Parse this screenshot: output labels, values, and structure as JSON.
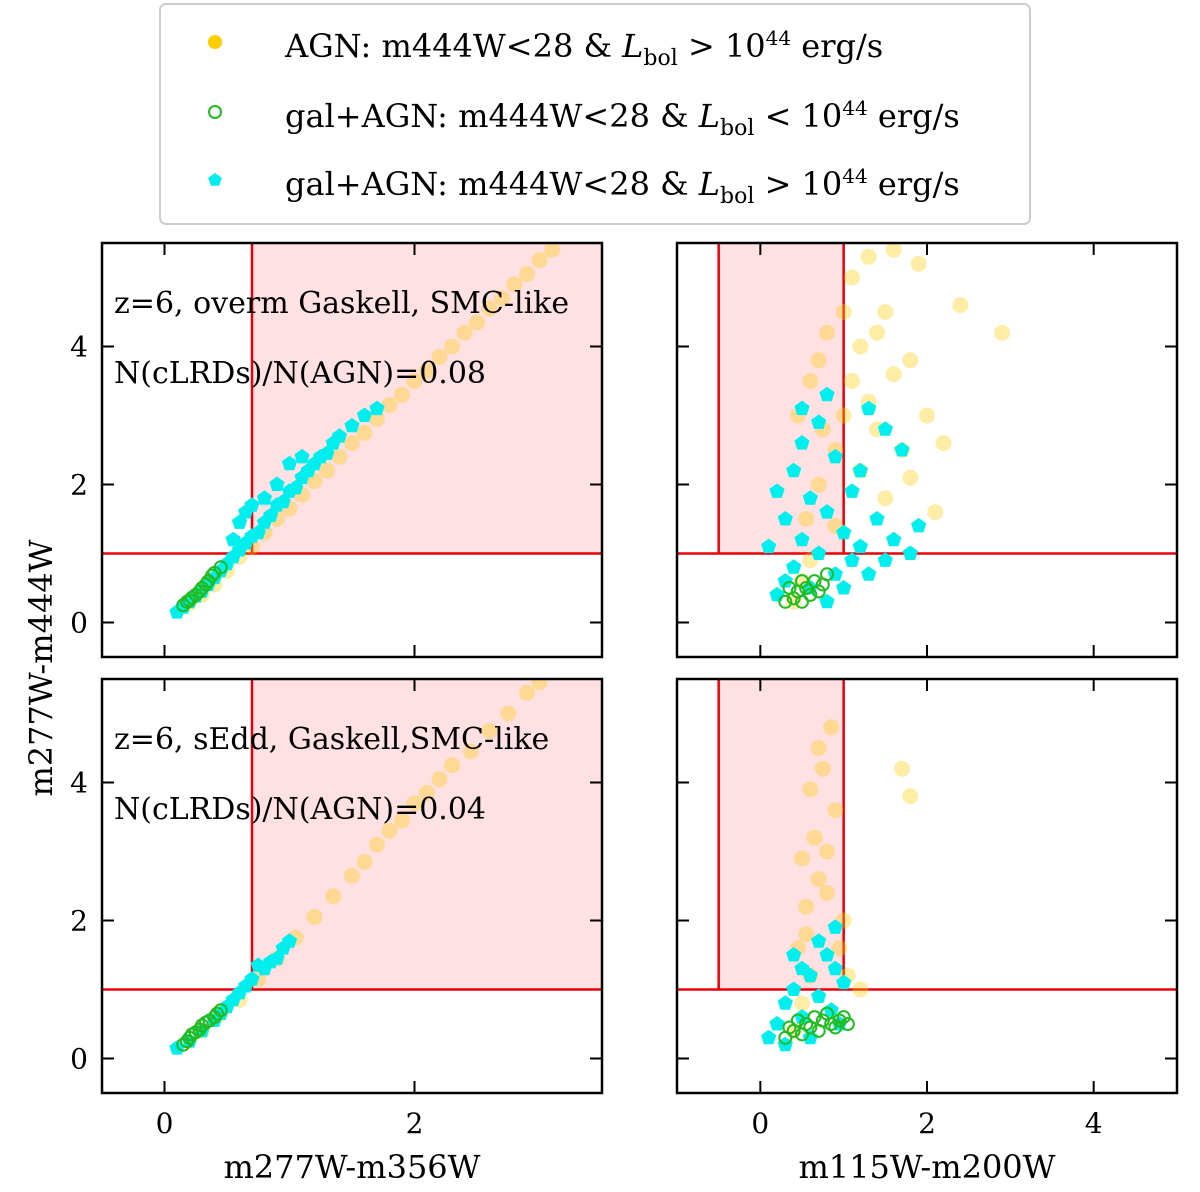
{
  "chart_data": {
    "type": "scatter",
    "legend": {
      "placement": "top-center",
      "entries": [
        {
          "name": "agn",
          "prefix": "AGN: m444W<28 & ",
          "L": "L",
          "sub": "bol",
          "op": ">",
          "base": "10",
          "exp": "44",
          "unit": "erg/s",
          "color": "#FFCC00",
          "marker": "filled-circle"
        },
        {
          "name": "gal-agn-low",
          "prefix": "gal+AGN: m444W<28 & ",
          "L": "L",
          "sub": "bol",
          "op": "<",
          "base": "10",
          "exp": "44",
          "unit": "erg/s",
          "color": "#22BB22",
          "marker": "open-circle"
        },
        {
          "name": "gal-agn-high",
          "prefix": "gal+AGN: m444W<28 & ",
          "L": "L",
          "sub": "bol",
          "op": ">",
          "base": "10",
          "exp": "44",
          "unit": "erg/s",
          "color": "#00EEEE",
          "marker": "filled-pentagon"
        }
      ]
    },
    "ylabel": "m277W-m444W",
    "colors": {
      "agn": "#FFCC00",
      "gal_agn_low": "#22BB22",
      "gal_agn_high": "#00EEEE",
      "selection_line": "#E8000B",
      "selection_fill": "#FFE1E3"
    },
    "panels": [
      {
        "name": "top-left",
        "xlabel": "",
        "xlim": [
          -0.5,
          3.5
        ],
        "ylim": [
          -0.5,
          5.5
        ],
        "xticks": [
          0,
          2
        ],
        "yticks": [
          0,
          2,
          4
        ],
        "annotations": [
          "z=6, overm Gaskell, SMC-like",
          "N(cLRDs)/N(AGN)=0.08"
        ],
        "selection": {
          "x_min": 0.7,
          "x_max": 3.5,
          "y_min": 1.0
        },
        "agn_points": [
          [
            0.2,
            0.28
          ],
          [
            0.3,
            0.4
          ],
          [
            0.4,
            0.55
          ],
          [
            0.5,
            0.75
          ],
          [
            0.6,
            0.95
          ],
          [
            0.7,
            1.1
          ],
          [
            0.8,
            1.3
          ],
          [
            0.9,
            1.5
          ],
          [
            1.0,
            1.65
          ],
          [
            1.1,
            1.85
          ],
          [
            1.2,
            2.05
          ],
          [
            1.3,
            2.2
          ],
          [
            1.4,
            2.4
          ],
          [
            1.5,
            2.6
          ],
          [
            1.6,
            2.75
          ],
          [
            1.7,
            2.95
          ],
          [
            1.8,
            3.15
          ],
          [
            1.9,
            3.3
          ],
          [
            2.0,
            3.5
          ],
          [
            2.1,
            3.65
          ],
          [
            2.2,
            3.85
          ],
          [
            2.3,
            4.0
          ],
          [
            2.4,
            4.2
          ],
          [
            2.5,
            4.35
          ],
          [
            2.6,
            4.55
          ],
          [
            2.7,
            4.7
          ],
          [
            2.8,
            4.9
          ],
          [
            2.9,
            5.05
          ],
          [
            3.0,
            5.25
          ],
          [
            3.1,
            5.4
          ]
        ],
        "gal_agn_high_points": [
          [
            0.1,
            0.15
          ],
          [
            0.15,
            0.22
          ],
          [
            0.2,
            0.3
          ],
          [
            0.25,
            0.38
          ],
          [
            0.3,
            0.45
          ],
          [
            0.35,
            0.55
          ],
          [
            0.4,
            0.65
          ],
          [
            0.45,
            0.75
          ],
          [
            0.5,
            0.85
          ],
          [
            0.55,
            0.95
          ],
          [
            0.55,
            1.2
          ],
          [
            0.6,
            1.05
          ],
          [
            0.6,
            1.45
          ],
          [
            0.65,
            1.15
          ],
          [
            0.65,
            1.6
          ],
          [
            0.7,
            1.25
          ],
          [
            0.7,
            1.7
          ],
          [
            0.75,
            1.3
          ],
          [
            0.8,
            1.45
          ],
          [
            0.8,
            1.8
          ],
          [
            0.85,
            1.55
          ],
          [
            0.9,
            1.7
          ],
          [
            0.9,
            2.0
          ],
          [
            0.95,
            1.75
          ],
          [
            1.0,
            1.9
          ],
          [
            1.0,
            2.3
          ],
          [
            1.05,
            1.95
          ],
          [
            1.1,
            2.1
          ],
          [
            1.1,
            2.4
          ],
          [
            1.15,
            2.2
          ],
          [
            1.2,
            2.3
          ],
          [
            1.25,
            2.4
          ],
          [
            1.3,
            2.45
          ],
          [
            1.35,
            2.6
          ],
          [
            1.4,
            2.7
          ],
          [
            1.5,
            2.85
          ],
          [
            1.6,
            3.0
          ],
          [
            1.7,
            3.1
          ]
        ],
        "gal_agn_low_points": [
          [
            0.15,
            0.25
          ],
          [
            0.18,
            0.3
          ],
          [
            0.2,
            0.32
          ],
          [
            0.22,
            0.36
          ],
          [
            0.25,
            0.4
          ],
          [
            0.28,
            0.45
          ],
          [
            0.3,
            0.5
          ],
          [
            0.33,
            0.55
          ],
          [
            0.35,
            0.6
          ],
          [
            0.38,
            0.68
          ],
          [
            0.4,
            0.72
          ],
          [
            0.45,
            0.8
          ]
        ]
      },
      {
        "name": "top-right",
        "xlabel": "",
        "xlim": [
          -1,
          5
        ],
        "ylim": [
          -0.5,
          5.5
        ],
        "xticks": [
          0,
          2,
          4
        ],
        "yticks": [
          0,
          2,
          4
        ],
        "annotations": [],
        "selection": {
          "x_min": -0.5,
          "x_max": 1.0,
          "y_min": 1.0
        },
        "agn_points": [
          [
            0.4,
            0.3
          ],
          [
            0.5,
            0.6
          ],
          [
            0.6,
            0.9
          ],
          [
            0.55,
            1.5
          ],
          [
            0.7,
            2.0
          ],
          [
            0.75,
            2.8
          ],
          [
            0.45,
            3.0
          ],
          [
            0.6,
            3.5
          ],
          [
            0.9,
            2.5
          ],
          [
            1.0,
            3.0
          ],
          [
            1.1,
            3.5
          ],
          [
            1.2,
            4.0
          ],
          [
            1.3,
            3.2
          ],
          [
            1.4,
            2.8
          ],
          [
            1.5,
            4.5
          ],
          [
            1.6,
            3.6
          ],
          [
            1.7,
            2.5
          ],
          [
            1.8,
            3.8
          ],
          [
            1.9,
            5.2
          ],
          [
            2.0,
            3.0
          ],
          [
            2.2,
            2.6
          ],
          [
            2.4,
            4.6
          ],
          [
            2.9,
            4.2
          ],
          [
            1.1,
            5.0
          ],
          [
            1.3,
            5.3
          ],
          [
            1.6,
            5.4
          ],
          [
            0.8,
            4.2
          ],
          [
            0.7,
            3.8
          ],
          [
            1.0,
            4.5
          ],
          [
            1.2,
            2.2
          ],
          [
            1.5,
            1.8
          ],
          [
            1.8,
            2.1
          ],
          [
            2.1,
            1.6
          ],
          [
            0.9,
            1.4
          ],
          [
            1.4,
            4.2
          ]
        ],
        "gal_agn_high_points": [
          [
            0.1,
            1.1
          ],
          [
            0.2,
            0.4
          ],
          [
            0.3,
            0.6
          ],
          [
            0.3,
            1.5
          ],
          [
            0.4,
            0.8
          ],
          [
            0.4,
            2.2
          ],
          [
            0.5,
            1.2
          ],
          [
            0.5,
            2.6
          ],
          [
            0.6,
            0.5
          ],
          [
            0.6,
            1.8
          ],
          [
            0.7,
            1.0
          ],
          [
            0.7,
            2.9
          ],
          [
            0.8,
            0.3
          ],
          [
            0.8,
            1.6
          ],
          [
            0.9,
            0.7
          ],
          [
            0.9,
            2.4
          ],
          [
            1.0,
            1.3
          ],
          [
            1.0,
            0.5
          ],
          [
            1.1,
            1.9
          ],
          [
            1.1,
            0.9
          ],
          [
            1.2,
            1.1
          ],
          [
            1.2,
            2.2
          ],
          [
            1.3,
            0.7
          ],
          [
            1.3,
            3.1
          ],
          [
            1.4,
            1.5
          ],
          [
            1.5,
            0.9
          ],
          [
            1.5,
            2.8
          ],
          [
            1.6,
            1.2
          ],
          [
            1.7,
            2.5
          ],
          [
            1.8,
            1.0
          ],
          [
            1.9,
            1.4
          ],
          [
            0.2,
            1.9
          ],
          [
            0.5,
            3.1
          ],
          [
            0.8,
            3.3
          ]
        ],
        "gal_agn_low_points": [
          [
            0.3,
            0.3
          ],
          [
            0.4,
            0.35
          ],
          [
            0.45,
            0.45
          ],
          [
            0.5,
            0.3
          ],
          [
            0.55,
            0.5
          ],
          [
            0.6,
            0.4
          ],
          [
            0.65,
            0.6
          ],
          [
            0.7,
            0.45
          ],
          [
            0.75,
            0.55
          ],
          [
            0.8,
            0.7
          ],
          [
            0.5,
            0.6
          ],
          [
            0.35,
            0.5
          ]
        ]
      },
      {
        "name": "bottom-left",
        "xlabel": "m277W-m356W",
        "xlim": [
          -0.5,
          3.5
        ],
        "ylim": [
          -0.5,
          5.5
        ],
        "xticks": [
          0,
          2
        ],
        "yticks": [
          0,
          2,
          4
        ],
        "annotations": [
          "z=6, sEdd, Gaskell,SMC-like",
          "N(cLRDs)/N(AGN)=0.04"
        ],
        "selection": {
          "x_min": 0.7,
          "x_max": 3.5,
          "y_min": 1.0
        },
        "agn_points": [
          [
            0.3,
            0.4
          ],
          [
            0.45,
            0.65
          ],
          [
            0.6,
            0.85
          ],
          [
            0.75,
            1.15
          ],
          [
            0.9,
            1.45
          ],
          [
            1.05,
            1.75
          ],
          [
            1.2,
            2.05
          ],
          [
            1.35,
            2.35
          ],
          [
            1.5,
            2.65
          ],
          [
            1.6,
            2.85
          ],
          [
            1.7,
            3.1
          ],
          [
            1.8,
            3.3
          ],
          [
            1.9,
            3.45
          ],
          [
            2.0,
            3.7
          ],
          [
            2.1,
            3.85
          ],
          [
            2.2,
            4.05
          ],
          [
            2.3,
            4.25
          ],
          [
            2.45,
            4.45
          ],
          [
            2.6,
            4.75
          ],
          [
            2.75,
            5.0
          ],
          [
            2.9,
            5.3
          ],
          [
            3.0,
            5.45
          ]
        ],
        "gal_agn_high_points": [
          [
            0.1,
            0.15
          ],
          [
            0.2,
            0.25
          ],
          [
            0.3,
            0.4
          ],
          [
            0.4,
            0.55
          ],
          [
            0.45,
            0.65
          ],
          [
            0.5,
            0.75
          ],
          [
            0.55,
            0.85
          ],
          [
            0.6,
            0.95
          ],
          [
            0.65,
            1.05
          ],
          [
            0.7,
            1.15
          ],
          [
            0.8,
            1.3
          ],
          [
            0.9,
            1.45
          ],
          [
            0.95,
            1.6
          ],
          [
            1.0,
            1.7
          ],
          [
            0.75,
            1.35
          ],
          [
            0.85,
            1.4
          ]
        ],
        "gal_agn_low_points": [
          [
            0.15,
            0.2
          ],
          [
            0.18,
            0.25
          ],
          [
            0.2,
            0.3
          ],
          [
            0.22,
            0.35
          ],
          [
            0.25,
            0.38
          ],
          [
            0.28,
            0.42
          ],
          [
            0.3,
            0.48
          ],
          [
            0.33,
            0.52
          ],
          [
            0.36,
            0.55
          ],
          [
            0.4,
            0.6
          ],
          [
            0.42,
            0.65
          ],
          [
            0.45,
            0.7
          ]
        ]
      },
      {
        "name": "bottom-right",
        "xlabel": "m115W-m200W",
        "xlim": [
          -1,
          5
        ],
        "ylim": [
          -0.5,
          5.5
        ],
        "xticks": [
          0,
          2,
          4
        ],
        "yticks": [
          0,
          2,
          4
        ],
        "annotations": [],
        "selection": {
          "x_min": -0.5,
          "x_max": 1.0,
          "y_min": 1.0
        },
        "agn_points": [
          [
            0.4,
            0.4
          ],
          [
            0.5,
            0.8
          ],
          [
            0.6,
            1.2
          ],
          [
            0.45,
            1.6
          ],
          [
            0.55,
            2.2
          ],
          [
            0.7,
            2.6
          ],
          [
            0.65,
            3.2
          ],
          [
            0.75,
            4.2
          ],
          [
            0.85,
            4.8
          ],
          [
            0.9,
            3.6
          ],
          [
            1.0,
            2.0
          ],
          [
            0.6,
            3.9
          ],
          [
            0.8,
            3.0
          ],
          [
            0.95,
            1.6
          ],
          [
            1.05,
            1.2
          ],
          [
            1.2,
            1.0
          ],
          [
            1.7,
            4.2
          ],
          [
            1.8,
            3.8
          ],
          [
            0.7,
            4.5
          ],
          [
            0.5,
            2.9
          ],
          [
            0.8,
            2.4
          ],
          [
            0.55,
            1.8
          ]
        ],
        "gal_agn_high_points": [
          [
            0.1,
            0.3
          ],
          [
            0.2,
            0.5
          ],
          [
            0.3,
            0.8
          ],
          [
            0.4,
            1.0
          ],
          [
            0.5,
            0.6
          ],
          [
            0.6,
            1.2
          ],
          [
            0.7,
            0.9
          ],
          [
            0.8,
            1.5
          ],
          [
            0.9,
            1.9
          ],
          [
            1.0,
            1.1
          ],
          [
            0.4,
            1.5
          ],
          [
            0.6,
            0.3
          ],
          [
            0.7,
            1.7
          ],
          [
            0.9,
            1.3
          ],
          [
            0.3,
            0.2
          ],
          [
            0.5,
            1.3
          ],
          [
            0.85,
            0.7
          ],
          [
            0.95,
            0.5
          ]
        ],
        "gal_agn_low_points": [
          [
            0.3,
            0.3
          ],
          [
            0.4,
            0.4
          ],
          [
            0.5,
            0.35
          ],
          [
            0.55,
            0.5
          ],
          [
            0.6,
            0.45
          ],
          [
            0.65,
            0.6
          ],
          [
            0.7,
            0.4
          ],
          [
            0.75,
            0.55
          ],
          [
            0.8,
            0.65
          ],
          [
            0.85,
            0.5
          ],
          [
            0.9,
            0.45
          ],
          [
            0.95,
            0.55
          ],
          [
            1.0,
            0.6
          ],
          [
            1.05,
            0.5
          ],
          [
            0.45,
            0.55
          ],
          [
            0.35,
            0.45
          ]
        ]
      }
    ]
  }
}
